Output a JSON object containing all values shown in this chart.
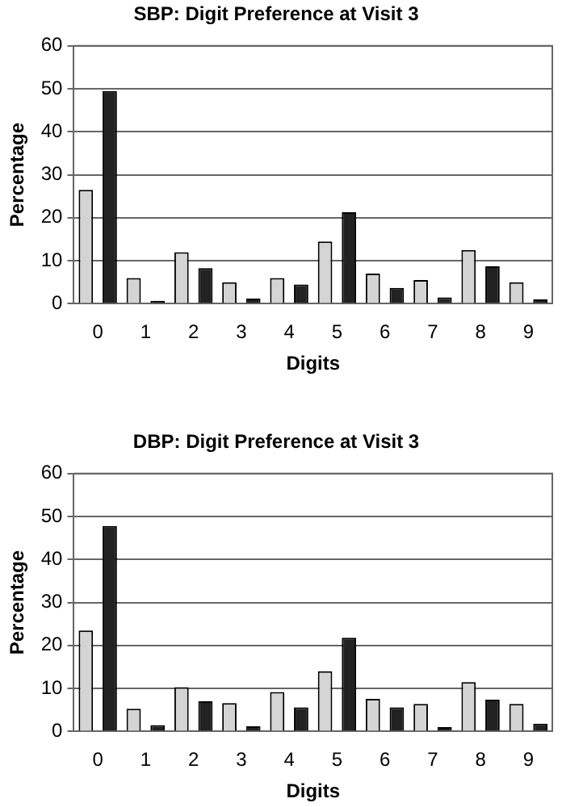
{
  "chart_data": [
    {
      "type": "bar",
      "title": "SBP: Digit Preference at Visit 3",
      "xlabel": "Digits",
      "ylabel": "Percentage",
      "categories": [
        "0",
        "1",
        "2",
        "3",
        "4",
        "5",
        "6",
        "7",
        "8",
        "9"
      ],
      "series": [
        {
          "color": "#d4d4d4",
          "values": [
            26.5,
            6,
            12,
            5,
            6,
            14.5,
            7,
            5.5,
            12.5,
            5
          ]
        },
        {
          "color": "#222222",
          "values": [
            49.5,
            0.7,
            8.3,
            1.2,
            4.5,
            21.3,
            3.7,
            1.5,
            8.7,
            1
          ]
        }
      ],
      "ylim": [
        0,
        60
      ],
      "yticks": [
        0,
        10,
        20,
        30,
        40,
        50,
        60
      ],
      "grid": "y",
      "legend": false
    },
    {
      "type": "bar",
      "title": "DBP: Digit Preference at Visit 3",
      "xlabel": "Digits",
      "ylabel": "Percentage",
      "categories": [
        "0",
        "1",
        "2",
        "3",
        "4",
        "5",
        "6",
        "7",
        "8",
        "9"
      ],
      "series": [
        {
          "color": "#d4d4d4",
          "values": [
            23.5,
            5.3,
            10.3,
            6.6,
            9.2,
            14,
            7.6,
            6.4,
            11.5,
            6.4
          ]
        },
        {
          "color": "#222222",
          "values": [
            47.8,
            1.5,
            7,
            1.2,
            5.6,
            21.8,
            5.6,
            1,
            7.4,
            1.8
          ]
        }
      ],
      "ylim": [
        0,
        60
      ],
      "yticks": [
        0,
        10,
        20,
        30,
        40,
        50,
        60
      ],
      "grid": "y",
      "legend": false
    }
  ]
}
